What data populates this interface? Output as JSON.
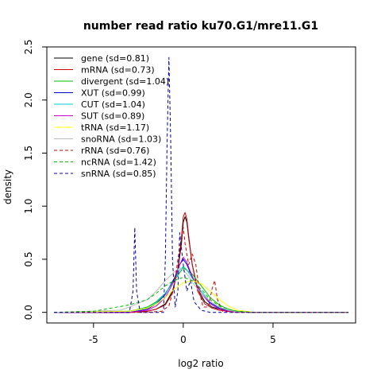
{
  "chart_data": {
    "type": "line",
    "title": "number read ratio ku70.G1/mre11.G1",
    "xlabel": "log2 ratio",
    "ylabel": "density",
    "xlim": [
      -7.6,
      9.6
    ],
    "ylim": [
      -0.1,
      2.5
    ],
    "xticks": [
      -5,
      0,
      5
    ],
    "yticks": [
      0.0,
      0.5,
      1.0,
      1.5,
      2.0,
      2.5
    ],
    "ytick_labels": [
      "0.0",
      "0.5",
      "1.0",
      "1.5",
      "2.0",
      "2.5"
    ],
    "grid": false,
    "legend_position": "top-left",
    "series": [
      {
        "name": "gene (sd=0.81)",
        "color": "#000000",
        "dash": "solid",
        "x": [
          -7.2,
          -3,
          -2,
          -1.5,
          -1,
          -0.6,
          -0.3,
          -0.1,
          0.0,
          0.1,
          0.2,
          0.3,
          0.5,
          0.8,
          1.2,
          1.6,
          2,
          2.5,
          3,
          4,
          9.2
        ],
        "y": [
          0,
          0,
          0.01,
          0.03,
          0.08,
          0.2,
          0.4,
          0.65,
          0.85,
          0.9,
          0.85,
          0.7,
          0.45,
          0.22,
          0.1,
          0.05,
          0.03,
          0.01,
          0.005,
          0,
          0
        ]
      },
      {
        "name": "mRNA (sd=0.73)",
        "color": "#cc0000",
        "dash": "solid",
        "x": [
          -7.2,
          -3,
          -2,
          -1.5,
          -1,
          -0.6,
          -0.3,
          -0.1,
          0.0,
          0.1,
          0.2,
          0.3,
          0.5,
          0.8,
          1.2,
          1.6,
          2,
          2.5,
          3,
          4,
          9.2
        ],
        "y": [
          0,
          0,
          0.01,
          0.03,
          0.07,
          0.18,
          0.42,
          0.7,
          0.9,
          0.94,
          0.88,
          0.72,
          0.45,
          0.2,
          0.08,
          0.04,
          0.02,
          0.01,
          0.005,
          0,
          0
        ]
      },
      {
        "name": "divergent (sd=1.04)",
        "color": "#00bb00",
        "dash": "solid",
        "x": [
          -7.2,
          -3,
          -2,
          -1.5,
          -1,
          -0.5,
          0,
          0.5,
          1,
          1.5,
          2,
          2.5,
          3,
          4,
          9.2
        ],
        "y": [
          0,
          0.01,
          0.05,
          0.1,
          0.18,
          0.3,
          0.42,
          0.36,
          0.25,
          0.14,
          0.07,
          0.03,
          0.01,
          0,
          0
        ]
      },
      {
        "name": "XUT (sd=0.99)",
        "color": "#0000cc",
        "dash": "solid",
        "x": [
          -7.2,
          -3,
          -2,
          -1.5,
          -1,
          -0.5,
          -0.2,
          0,
          0.2,
          0.5,
          1,
          1.5,
          2,
          2.5,
          3,
          4,
          9.2
        ],
        "y": [
          0,
          0,
          0.03,
          0.08,
          0.17,
          0.32,
          0.45,
          0.5,
          0.45,
          0.33,
          0.18,
          0.09,
          0.04,
          0.015,
          0.005,
          0,
          0
        ]
      },
      {
        "name": "CUT (sd=1.04)",
        "color": "#00cccc",
        "dash": "solid",
        "x": [
          -7.2,
          -3,
          -2,
          -1.5,
          -1,
          -0.5,
          -0.2,
          0,
          0.2,
          0.5,
          1,
          1.5,
          2,
          2.5,
          3,
          4,
          9.2
        ],
        "y": [
          0,
          0.01,
          0.04,
          0.09,
          0.18,
          0.3,
          0.4,
          0.43,
          0.4,
          0.32,
          0.2,
          0.1,
          0.05,
          0.02,
          0.008,
          0,
          0
        ]
      },
      {
        "name": "SUT (sd=0.89)",
        "color": "#cc00cc",
        "dash": "solid",
        "x": [
          -7.2,
          -3,
          -2,
          -1.5,
          -1,
          -0.5,
          -0.2,
          0,
          0.2,
          0.5,
          1,
          1.5,
          2,
          2.5,
          3,
          4,
          9.2
        ],
        "y": [
          0,
          0,
          0.02,
          0.06,
          0.14,
          0.3,
          0.45,
          0.52,
          0.47,
          0.34,
          0.18,
          0.08,
          0.03,
          0.01,
          0.003,
          0,
          0
        ]
      },
      {
        "name": "tRNA (sd=1.17)",
        "color": "#ffff00",
        "dash": "solid",
        "x": [
          -7.2,
          -3,
          -2,
          -1.5,
          -1,
          -0.5,
          0,
          0.5,
          1,
          1.5,
          2,
          2.5,
          3,
          4,
          9.2
        ],
        "y": [
          0,
          0.01,
          0.04,
          0.08,
          0.14,
          0.22,
          0.28,
          0.3,
          0.27,
          0.2,
          0.12,
          0.06,
          0.02,
          0,
          0
        ]
      },
      {
        "name": "snoRNA (sd=1.03)",
        "color": "#bbbbbb",
        "dash": "solid",
        "x": [
          -7.2,
          -3.5,
          -3,
          -2,
          -1.5,
          -1,
          -0.5,
          -0.2,
          0,
          0.3,
          0.6,
          1,
          1.5,
          2,
          2.5,
          3,
          4,
          9.2
        ],
        "y": [
          0,
          0.02,
          0.05,
          0.12,
          0.2,
          0.3,
          0.38,
          0.42,
          0.4,
          0.34,
          0.26,
          0.18,
          0.1,
          0.05,
          0.02,
          0.005,
          0,
          0
        ]
      },
      {
        "name": "rRNA (sd=0.76)",
        "color": "#cc0000",
        "dash": "dashed",
        "x": [
          -7.2,
          -2,
          -1.2,
          -0.8,
          -0.5,
          -0.3,
          -0.1,
          0,
          0.1,
          0.3,
          0.5,
          0.7,
          0.9,
          1.1,
          1.4,
          1.6,
          1.75,
          1.9,
          2.2,
          3,
          9.2
        ],
        "y": [
          0,
          0,
          0.01,
          0.06,
          0.25,
          0.5,
          0.7,
          0.8,
          0.65,
          0.45,
          0.55,
          0.45,
          0.2,
          0.05,
          0.05,
          0.22,
          0.3,
          0.12,
          0.01,
          0,
          0
        ]
      },
      {
        "name": "ncRNA (sd=1.42)",
        "color": "#00bb00",
        "dash": "dashed",
        "x": [
          -7.2,
          -5,
          -4,
          -3,
          -2,
          -1.5,
          -1,
          -0.5,
          0,
          0.5,
          1,
          1.5,
          2,
          2.5,
          3,
          4,
          9.2
        ],
        "y": [
          0,
          0.01,
          0.04,
          0.07,
          0.12,
          0.18,
          0.25,
          0.3,
          0.33,
          0.3,
          0.22,
          0.12,
          0.06,
          0.03,
          0.01,
          0,
          0
        ]
      },
      {
        "name": "snRNA (sd=0.85)",
        "color": "#0000aa",
        "dash": "dashed",
        "x": [
          -7.2,
          -3.0,
          -2.8,
          -2.7,
          -2.6,
          -2.4,
          -1.1,
          -1.0,
          -0.9,
          -0.8,
          -0.7,
          -0.6,
          -0.45,
          -0.3,
          -0.2,
          0,
          0.2,
          0.4,
          0.6,
          1,
          1.5,
          2,
          3,
          9.2
        ],
        "y": [
          0,
          0,
          0.2,
          0.8,
          0.2,
          0,
          0,
          0.5,
          1.6,
          2.4,
          1.6,
          0.5,
          0.05,
          0.2,
          0.75,
          0.45,
          0.2,
          0.3,
          0.1,
          0.02,
          0,
          0,
          0,
          0
        ]
      }
    ]
  }
}
